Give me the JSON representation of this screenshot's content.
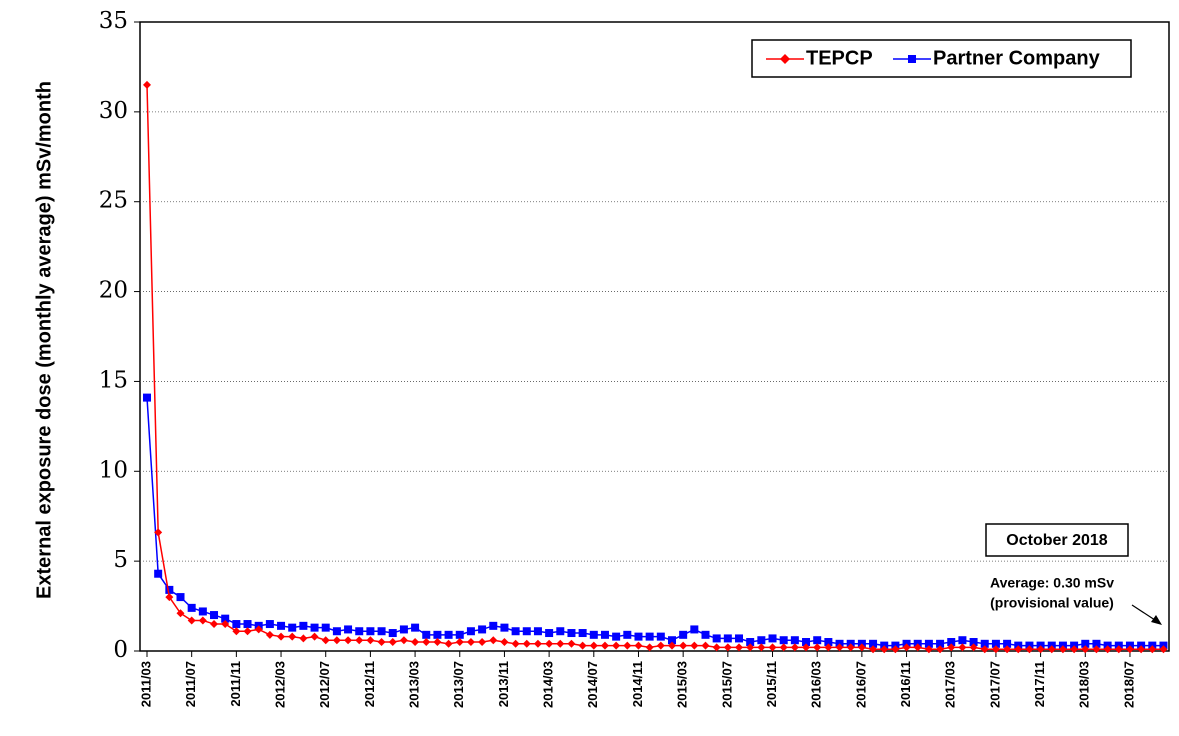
{
  "chart_data": {
    "type": "line",
    "y_label": "External exposure dose (monthly average) mSv/month",
    "categories": [
      "2011/03",
      null,
      null,
      null,
      "2011/07",
      null,
      null,
      null,
      "2011/11",
      null,
      null,
      null,
      "2012/03",
      null,
      null,
      null,
      "2012/07",
      null,
      null,
      null,
      "2012/11",
      null,
      null,
      null,
      "2013/03",
      null,
      null,
      null,
      "2013/07",
      null,
      null,
      null,
      "2013/11",
      null,
      null,
      null,
      "2014/03",
      null,
      null,
      null,
      "2014/07",
      null,
      null,
      null,
      "2014/11",
      null,
      null,
      null,
      "2015/03",
      null,
      null,
      null,
      "2015/07",
      null,
      null,
      null,
      "2015/11",
      null,
      null,
      null,
      "2016/03",
      null,
      null,
      null,
      "2016/07",
      null,
      null,
      null,
      "2016/11",
      null,
      null,
      null,
      "2017/03",
      null,
      null,
      null,
      "2017/07",
      null,
      null,
      null,
      "2017/11",
      null,
      null,
      null,
      "2018/03",
      null,
      null,
      null,
      "2018/07",
      null,
      null,
      null
    ],
    "series": [
      {
        "name": "TEPCP",
        "color": "#ff0000",
        "marker": "diamond",
        "values": [
          31.5,
          6.6,
          3.0,
          2.1,
          1.7,
          1.7,
          1.5,
          1.5,
          1.1,
          1.1,
          1.2,
          0.9,
          0.8,
          0.8,
          0.7,
          0.8,
          0.6,
          0.6,
          0.6,
          0.6,
          0.6,
          0.5,
          0.5,
          0.6,
          0.5,
          0.5,
          0.5,
          0.4,
          0.5,
          0.5,
          0.5,
          0.6,
          0.5,
          0.4,
          0.4,
          0.4,
          0.4,
          0.4,
          0.4,
          0.3,
          0.3,
          0.3,
          0.3,
          0.3,
          0.3,
          0.2,
          0.3,
          0.3,
          0.3,
          0.3,
          0.3,
          0.2,
          0.2,
          0.2,
          0.2,
          0.2,
          0.2,
          0.2,
          0.2,
          0.2,
          0.2,
          0.2,
          0.2,
          0.2,
          0.2,
          0.1,
          0.1,
          0.1,
          0.2,
          0.2,
          0.1,
          0.1,
          0.2,
          0.2,
          0.2,
          0.1,
          0.1,
          0.1,
          0.1,
          0.1,
          0.1,
          0.1,
          0.1,
          0.1,
          0.1,
          0.1,
          0.1,
          0.1,
          0.1,
          0.1,
          0.1,
          0.1
        ]
      },
      {
        "name": "Partner Company",
        "color": "#0000ff",
        "marker": "square",
        "values": [
          14.1,
          4.3,
          3.4,
          3.0,
          2.4,
          2.2,
          2.0,
          1.8,
          1.5,
          1.5,
          1.4,
          1.5,
          1.4,
          1.3,
          1.4,
          1.3,
          1.3,
          1.1,
          1.2,
          1.1,
          1.1,
          1.1,
          1.0,
          1.2,
          1.3,
          0.9,
          0.9,
          0.9,
          0.9,
          1.1,
          1.2,
          1.4,
          1.3,
          1.1,
          1.1,
          1.1,
          1.0,
          1.1,
          1.0,
          1.0,
          0.9,
          0.9,
          0.8,
          0.9,
          0.8,
          0.8,
          0.8,
          0.6,
          0.9,
          1.2,
          0.9,
          0.7,
          0.7,
          0.7,
          0.5,
          0.6,
          0.7,
          0.6,
          0.6,
          0.5,
          0.6,
          0.5,
          0.4,
          0.4,
          0.4,
          0.4,
          0.3,
          0.3,
          0.4,
          0.4,
          0.4,
          0.4,
          0.5,
          0.6,
          0.5,
          0.4,
          0.4,
          0.4,
          0.3,
          0.3,
          0.3,
          0.3,
          0.3,
          0.3,
          0.4,
          0.4,
          0.3,
          0.3,
          0.3,
          0.3,
          0.3,
          0.3
        ]
      }
    ],
    "ylim": [
      0,
      35
    ],
    "yticks": [
      0,
      5,
      10,
      15,
      20,
      25,
      30,
      35
    ],
    "grid": true,
    "legend": "top-right",
    "annotations": [
      "October 2018",
      "Average: 0.30 mSv",
      "(provisional value)"
    ]
  }
}
